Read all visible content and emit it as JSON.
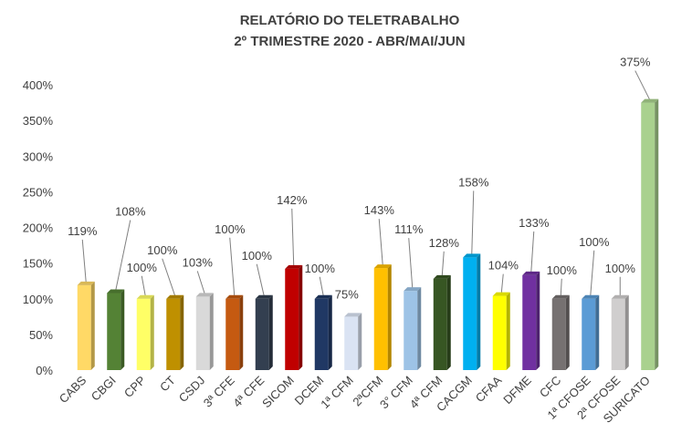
{
  "chart_data": {
    "type": "bar",
    "title": "RELATÓRIO DO TELETRABALHO",
    "subtitle": "2º TRIMESTRE 2020 - ABR/MAI/JUN",
    "xlabel": "",
    "ylabel": "",
    "ylim": [
      0,
      4
    ],
    "y_ticks": [
      {
        "value": 0,
        "label": "0%"
      },
      {
        "value": 0.5,
        "label": "50%"
      },
      {
        "value": 1,
        "label": "100%"
      },
      {
        "value": 1.5,
        "label": "150%"
      },
      {
        "value": 2,
        "label": "200%"
      },
      {
        "value": 2.5,
        "label": "250%"
      },
      {
        "value": 3,
        "label": "300%"
      },
      {
        "value": 3.5,
        "label": "350%"
      },
      {
        "value": 4,
        "label": "400%"
      }
    ],
    "grid": false,
    "legend": "none",
    "categories": [
      "CABS",
      "CBGI",
      "CPP",
      "CT",
      "CSDJ",
      "3ª CFE",
      "4ª CFE",
      "SICOM",
      "DCEM",
      "1ª CFM",
      "2ªCFM",
      "3° CFM",
      "4ª CFM",
      "CACGM",
      "CFAA",
      "DFME",
      "CFC",
      "1ª CFOSE",
      "2ª CFOSE",
      "SURICATO"
    ],
    "values": [
      1.19,
      1.08,
      1.0,
      1.0,
      1.03,
      1.0,
      1.0,
      1.42,
      1.0,
      0.75,
      1.43,
      1.11,
      1.28,
      1.58,
      1.04,
      1.33,
      1.0,
      1.0,
      1.0,
      3.75
    ],
    "data_labels": [
      "119%",
      "108%",
      "100%",
      "100%",
      "103%",
      "100%",
      "100%",
      "142%",
      "100%",
      "75%",
      "143%",
      "111%",
      "128%",
      "158%",
      "104%",
      "133%",
      "100%",
      "100%",
      "100%",
      "375%"
    ],
    "colors": [
      "#FFD966",
      "#548235",
      "#FFFF66",
      "#BF9000",
      "#D9D9D9",
      "#C55A11",
      "#333F50",
      "#C00000",
      "#203864",
      "#DAE3F3",
      "#FFC000",
      "#9DC3E6",
      "#375623",
      "#00B0F0",
      "#FFFF00",
      "#7030A0",
      "#767171",
      "#5B9BD5",
      "#D0CECE",
      "#A9D18E"
    ]
  }
}
